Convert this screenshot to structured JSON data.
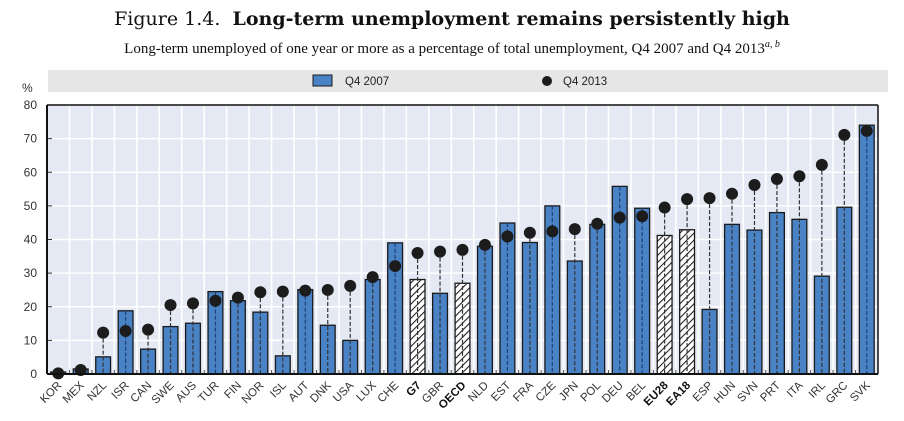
{
  "header": {
    "figure_label": "Figure 1.4.",
    "title": "Long-term unemployment remains persistently high",
    "subtitle": "Long-term unemployed of one year or more as a percentage of total unemployment, Q4 2007 and Q4 2013",
    "subtitle_notes": "a, b"
  },
  "colors": {
    "bar": "#4a82c6",
    "bar_outline": "#1a1a1a",
    "dot": "#1c1c1c",
    "plot_bg": "#e4e9f4",
    "legend_bg": "#e6e6e6",
    "grid": "#ffffff"
  },
  "chart_data": {
    "type": "bar",
    "title": "Long-term unemployment remains persistently high",
    "xlabel": "",
    "ylabel": "%",
    "ylim": [
      0,
      80
    ],
    "yticks": [
      0,
      10,
      20,
      30,
      40,
      50,
      60,
      70,
      80
    ],
    "grid": true,
    "legend_position": "top",
    "categories": [
      "KOR",
      "MEX",
      "NZL",
      "ISR",
      "CAN",
      "SWE",
      "AUS",
      "TUR",
      "FIN",
      "NOR",
      "ISL",
      "AUT",
      "DNK",
      "USA",
      "LUX",
      "CHE",
      "G7",
      "GBR",
      "OECD",
      "NLD",
      "EST",
      "FRA",
      "CZE",
      "JPN",
      "POL",
      "DEU",
      "BEL",
      "EU28",
      "EA18",
      "ESP",
      "HUN",
      "SVN",
      "PRT",
      "ITA",
      "IRL",
      "GRC",
      "SVK"
    ],
    "aggregates": [
      "G7",
      "OECD",
      "EU28",
      "EA18"
    ],
    "series": [
      {
        "name": "Q4 2007",
        "type": "bar",
        "values": [
          0.6,
          1.5,
          5.1,
          18.8,
          7.4,
          14.1,
          15.1,
          24.5,
          21.8,
          18.4,
          5.4,
          25.1,
          14.5,
          10.0,
          28.1,
          39.0,
          28.1,
          24.0,
          27.0,
          38.0,
          44.9,
          39.1,
          50.0,
          33.6,
          44.5,
          55.8,
          49.3,
          41.2,
          42.9,
          19.2,
          44.5,
          42.8,
          48.0,
          46.0,
          29.1,
          49.6,
          74.0
        ]
      },
      {
        "name": "Q4 2013",
        "type": "scatter",
        "values": [
          0.2,
          1.2,
          12.3,
          12.8,
          13.2,
          20.5,
          21.0,
          21.8,
          22.7,
          24.3,
          24.5,
          24.8,
          25.0,
          26.2,
          28.8,
          32.1,
          36.0,
          36.4,
          36.9,
          38.4,
          40.9,
          42.0,
          42.4,
          43.1,
          44.7,
          46.5,
          46.9,
          49.5,
          52.0,
          52.3,
          53.6,
          56.2,
          58.0,
          58.8,
          62.2,
          71.1,
          72.3
        ]
      }
    ]
  }
}
